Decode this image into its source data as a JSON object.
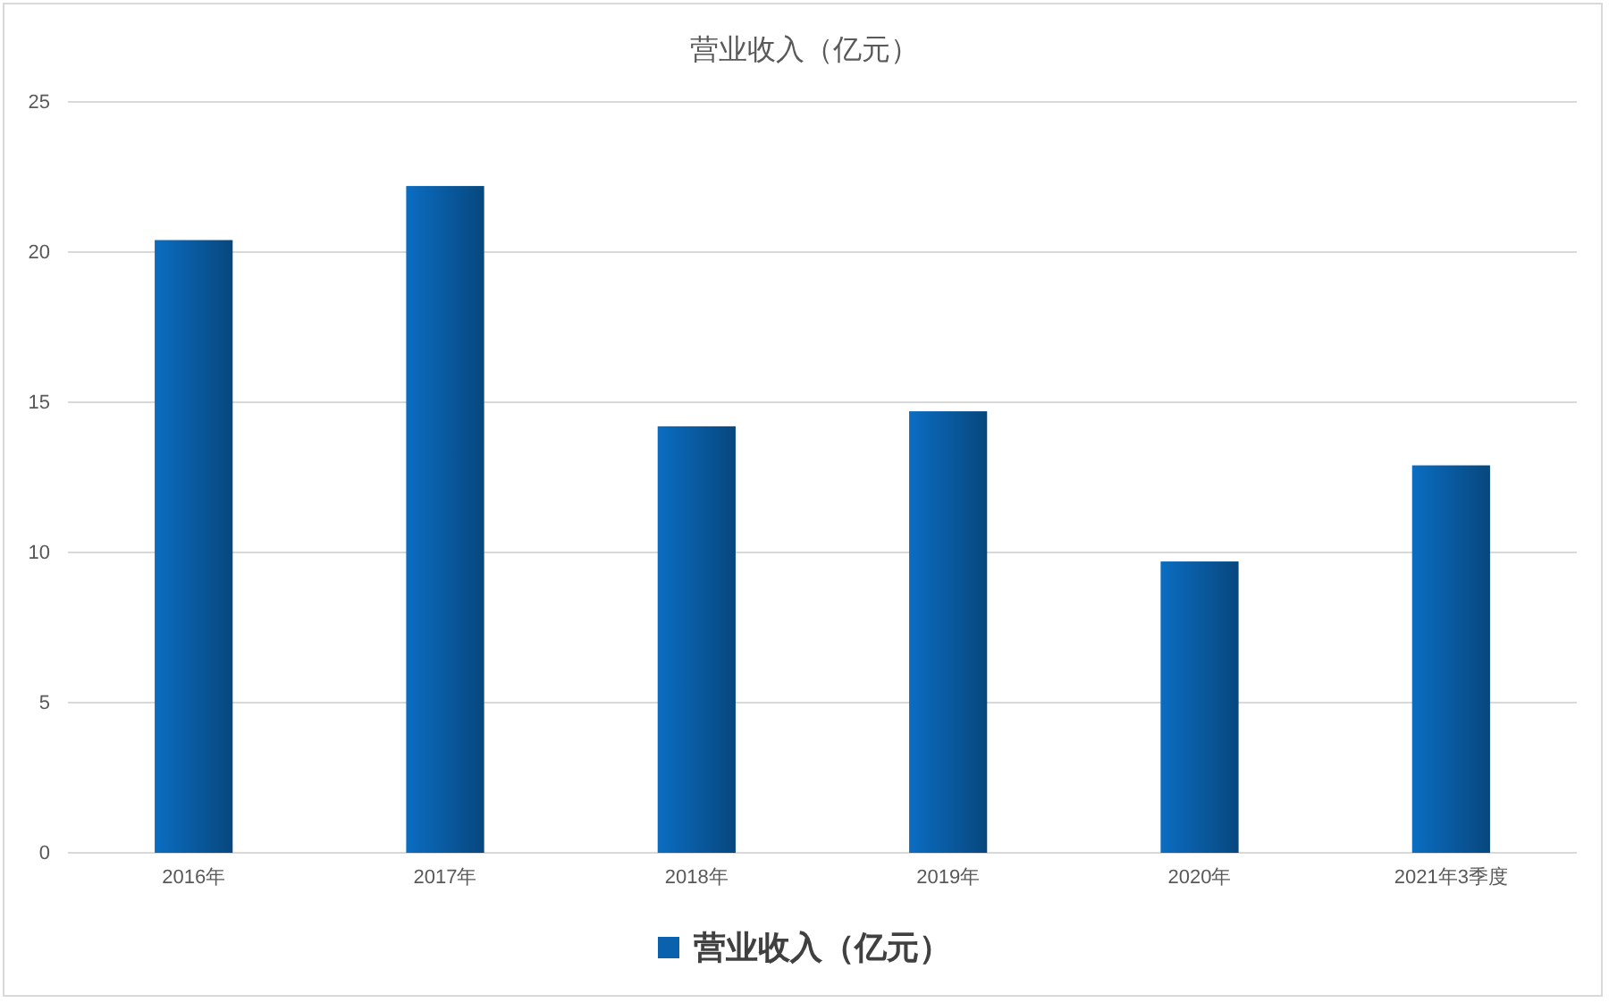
{
  "chart_data": {
    "type": "bar",
    "title": "营业收入（亿元）",
    "categories": [
      "2016年",
      "2017年",
      "2018年",
      "2019年",
      "2020年",
      "2021年3季度"
    ],
    "series": [
      {
        "name": "营业收入（亿元）",
        "color": "#0a62ae",
        "values": [
          20.4,
          22.2,
          14.2,
          14.7,
          9.7,
          12.9
        ]
      }
    ],
    "ylim": [
      0,
      25
    ],
    "yticks": [
      0,
      5,
      10,
      15,
      20,
      25
    ],
    "grid": "y",
    "legend": "bottom"
  }
}
